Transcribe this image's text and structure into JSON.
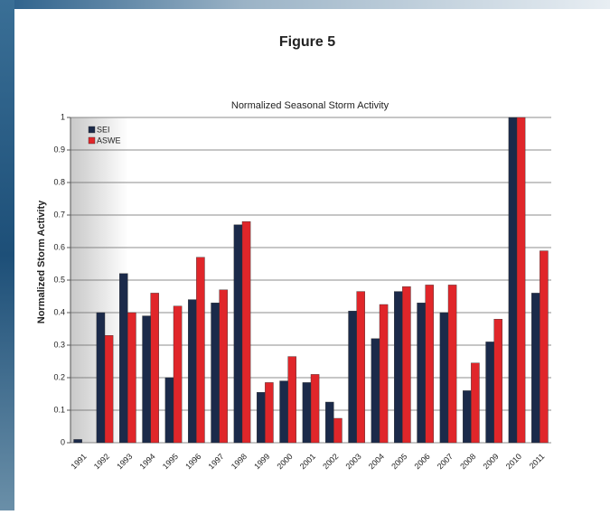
{
  "header": {
    "title": "Figure 5"
  },
  "chart_data": {
    "type": "bar",
    "title": "Normalized Seasonal Storm Activity",
    "y_label": "Normalized Storm Activity",
    "categories": [
      "1991",
      "1992",
      "1993",
      "1994",
      "1995",
      "1996",
      "1997",
      "1998",
      "1999",
      "2000",
      "2001",
      "2002",
      "2003",
      "2004",
      "2005",
      "2006",
      "2007",
      "2008",
      "2009",
      "2010",
      "2011"
    ],
    "series": [
      {
        "name": "SEI",
        "color": "#1b2a4a",
        "values": [
          0.01,
          0.4,
          0.52,
          0.39,
          0.2,
          0.44,
          0.43,
          0.67,
          0.155,
          0.19,
          0.185,
          0.125,
          0.405,
          0.32,
          0.465,
          0.43,
          0.4,
          0.16,
          0.31,
          1.0,
          0.46
        ]
      },
      {
        "name": "ASWE",
        "color": "#e0262a",
        "values": [
          0,
          0.33,
          0.4,
          0.46,
          0.42,
          0.57,
          0.47,
          0.68,
          0.185,
          0.265,
          0.21,
          0.075,
          0.465,
          0.425,
          0.48,
          0.485,
          0.485,
          0.245,
          0.38,
          1.0,
          0.59
        ]
      }
    ],
    "ylim": [
      0,
      1
    ],
    "yticks": [
      0,
      0.1,
      0.2,
      0.3,
      0.4,
      0.5,
      0.6,
      0.7,
      0.8,
      0.9,
      1
    ],
    "grid": true,
    "legend": "top-left"
  }
}
